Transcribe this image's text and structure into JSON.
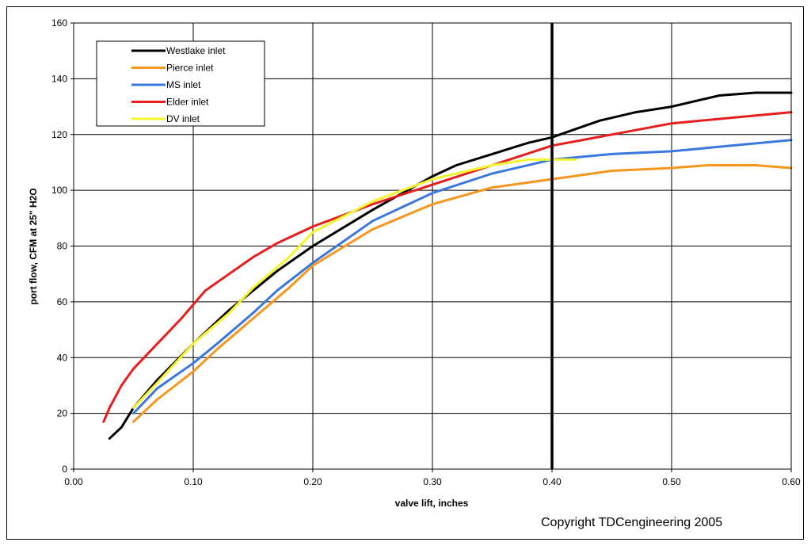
{
  "chart_data": {
    "type": "line",
    "xlabel": "valve lift, inches",
    "ylabel": "port flow, CFM at 25\" H2O",
    "xlim": [
      0.0,
      0.6
    ],
    "ylim": [
      0,
      160
    ],
    "x_ticks": [
      "0.00",
      "0.10",
      "0.20",
      "0.30",
      "0.40",
      "0.50",
      "0.60"
    ],
    "y_ticks": [
      "0",
      "20",
      "40",
      "60",
      "80",
      "100",
      "120",
      "140",
      "160"
    ],
    "grid": true,
    "legend_position": "top-left",
    "vertical_marker_x": 0.4,
    "series": [
      {
        "name": "Westlake inlet",
        "color": "#000000",
        "x": [
          0.03,
          0.04,
          0.05,
          0.07,
          0.1,
          0.13,
          0.17,
          0.2,
          0.25,
          0.3,
          0.32,
          0.35,
          0.38,
          0.4,
          0.42,
          0.44,
          0.47,
          0.5,
          0.52,
          0.54,
          0.57,
          0.6
        ],
        "y": [
          11,
          15,
          22,
          32,
          45,
          57,
          71,
          80,
          93,
          105,
          109,
          113,
          117,
          119,
          122,
          125,
          128,
          130,
          132,
          134,
          135,
          135
        ]
      },
      {
        "name": "Pierce inlet",
        "color": "#f5961e",
        "x": [
          0.05,
          0.07,
          0.1,
          0.12,
          0.15,
          0.18,
          0.2,
          0.25,
          0.3,
          0.35,
          0.4,
          0.45,
          0.5,
          0.53,
          0.57,
          0.6
        ],
        "y": [
          17,
          25,
          35,
          43,
          54,
          65,
          73,
          86,
          95,
          101,
          104,
          107,
          108,
          109,
          109,
          108
        ]
      },
      {
        "name": "MS inlet",
        "color": "#3c78dc",
        "x": [
          0.05,
          0.07,
          0.1,
          0.12,
          0.15,
          0.17,
          0.2,
          0.25,
          0.3,
          0.35,
          0.4,
          0.45,
          0.5,
          0.55,
          0.6
        ],
        "y": [
          20,
          29,
          38,
          45,
          56,
          64,
          74,
          89,
          99,
          106,
          111,
          113,
          114,
          116,
          118
        ]
      },
      {
        "name": "Elder inlet",
        "color": "#e61e1e",
        "x": [
          0.025,
          0.03,
          0.04,
          0.05,
          0.07,
          0.09,
          0.11,
          0.13,
          0.15,
          0.17,
          0.2,
          0.25,
          0.3,
          0.35,
          0.4,
          0.45,
          0.5,
          0.55,
          0.6
        ],
        "y": [
          17,
          22,
          30,
          36,
          45,
          54,
          64,
          70,
          76,
          81,
          87,
          95,
          102,
          109,
          116,
          120,
          124,
          126,
          128
        ]
      },
      {
        "name": "DV inlet",
        "color": "#f5f52d",
        "x": [
          0.05,
          0.07,
          0.1,
          0.13,
          0.15,
          0.18,
          0.2,
          0.25,
          0.3,
          0.35,
          0.38,
          0.42
        ],
        "y": [
          22,
          31,
          45,
          56,
          65,
          76,
          85,
          96,
          104,
          109,
          111,
          111
        ]
      }
    ],
    "copyright": "Copyright TDCengineering 2005"
  }
}
